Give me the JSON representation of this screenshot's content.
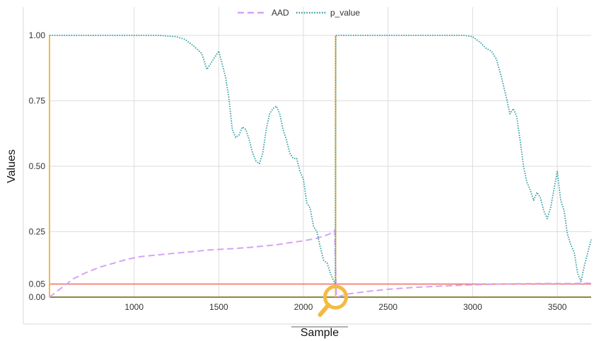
{
  "chart_data": {
    "type": "line",
    "title": "",
    "xlabel": "Sample",
    "ylabel": "Values",
    "xlim": [
      500,
      3700
    ],
    "ylim": [
      0,
      1
    ],
    "x_ticks": [
      1000,
      1500,
      2000,
      2500,
      3000,
      3500
    ],
    "y_ticks": [
      0.0,
      0.05,
      0.25,
      0.5,
      0.75,
      1.0
    ],
    "y_tick_labels": [
      "0.00",
      "0.05",
      "0.25",
      "0.50",
      "0.75",
      "1.00"
    ],
    "grid": true,
    "legend_position": "top-center",
    "threshold": {
      "value": 0.05,
      "color": "#f26b5b"
    },
    "baseline": {
      "value": 0.0,
      "color": "#8a8a3a"
    },
    "drift_markers": [
      {
        "x": 500,
        "color": "#f5b942"
      },
      {
        "x": 2190,
        "color": "#f5b942"
      }
    ],
    "marker_icon": {
      "name": "magnifier-icon",
      "x": 2190,
      "y": 0.0,
      "color": "#f5b942"
    },
    "series": [
      {
        "name": "AAD",
        "color": "#d6a3f5",
        "style": "dashed",
        "x": [
          500,
          560,
          640,
          720,
          800,
          880,
          960,
          1040,
          1120,
          1200,
          1280,
          1360,
          1440,
          1520,
          1600,
          1680,
          1760,
          1840,
          1920,
          2000,
          2080,
          2150,
          2185,
          2195,
          2260,
          2380,
          2500,
          2650,
          2800,
          2950,
          3100,
          3250,
          3400,
          3550,
          3700
        ],
        "values": [
          0.0,
          0.03,
          0.07,
          0.095,
          0.115,
          0.13,
          0.145,
          0.155,
          0.16,
          0.165,
          0.17,
          0.175,
          0.18,
          0.183,
          0.186,
          0.19,
          0.195,
          0.2,
          0.208,
          0.215,
          0.225,
          0.24,
          0.255,
          0.0,
          0.012,
          0.022,
          0.03,
          0.037,
          0.042,
          0.046,
          0.049,
          0.051,
          0.052,
          0.052,
          0.053
        ]
      },
      {
        "name": "p_value",
        "color": "#3a9fa0",
        "style": "dotted",
        "x": [
          500,
          1150,
          1250,
          1300,
          1350,
          1400,
          1430,
          1460,
          1490,
          1500,
          1520,
          1540,
          1560,
          1580,
          1600,
          1620,
          1640,
          1660,
          1680,
          1700,
          1720,
          1740,
          1760,
          1780,
          1800,
          1820,
          1840,
          1860,
          1880,
          1900,
          1920,
          1940,
          1960,
          1980,
          2000,
          2020,
          2040,
          2060,
          2080,
          2100,
          2120,
          2140,
          2160,
          2180,
          2189,
          2191,
          2250,
          2950,
          3000,
          3050,
          3080,
          3110,
          3140,
          3170,
          3200,
          3220,
          3240,
          3260,
          3280,
          3300,
          3320,
          3340,
          3360,
          3380,
          3400,
          3420,
          3440,
          3460,
          3480,
          3500,
          3520,
          3540,
          3560,
          3580,
          3600,
          3620,
          3640,
          3660,
          3680,
          3700
        ],
        "values": [
          1.0,
          1.0,
          0.995,
          0.985,
          0.96,
          0.93,
          0.87,
          0.9,
          0.93,
          0.94,
          0.89,
          0.84,
          0.76,
          0.64,
          0.61,
          0.62,
          0.65,
          0.64,
          0.6,
          0.55,
          0.52,
          0.51,
          0.55,
          0.64,
          0.7,
          0.72,
          0.73,
          0.7,
          0.64,
          0.6,
          0.55,
          0.53,
          0.53,
          0.48,
          0.45,
          0.36,
          0.34,
          0.27,
          0.25,
          0.19,
          0.14,
          0.13,
          0.09,
          0.06,
          0.05,
          1.0,
          1.0,
          1.0,
          0.995,
          0.97,
          0.95,
          0.94,
          0.91,
          0.84,
          0.76,
          0.7,
          0.72,
          0.69,
          0.6,
          0.5,
          0.44,
          0.41,
          0.37,
          0.4,
          0.38,
          0.33,
          0.3,
          0.34,
          0.41,
          0.48,
          0.37,
          0.33,
          0.24,
          0.2,
          0.17,
          0.09,
          0.06,
          0.12,
          0.17,
          0.22
        ]
      }
    ]
  }
}
